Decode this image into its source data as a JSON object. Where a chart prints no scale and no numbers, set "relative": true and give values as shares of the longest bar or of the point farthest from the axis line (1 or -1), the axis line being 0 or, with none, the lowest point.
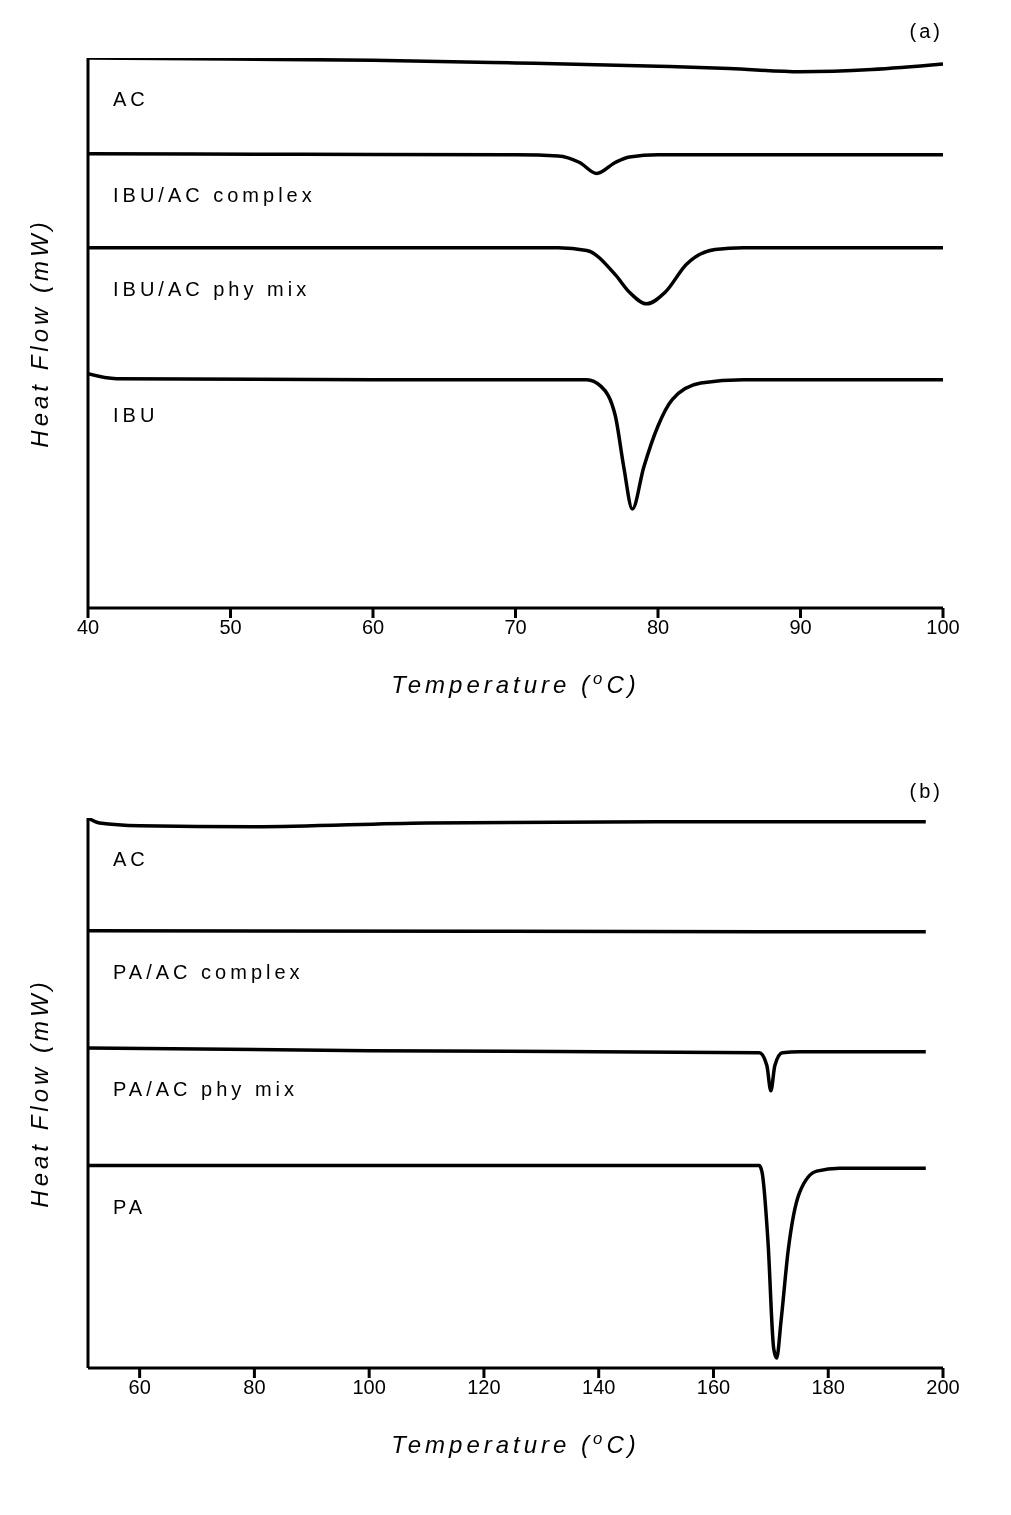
{
  "chart_data": [
    {
      "type": "line",
      "title": "(a)",
      "xlabel": "Temperature ($^{o}$C)",
      "ylabel": "Heat Flow (mW)",
      "relative": true,
      "xlim": [
        40,
        100
      ],
      "xticks": [
        40,
        50,
        60,
        70,
        80,
        90,
        100
      ],
      "series": [
        {
          "name": "AC",
          "color": "#000000",
          "x": [
            40,
            50,
            60,
            70,
            80,
            85,
            90,
            95,
            100
          ],
          "values": [
            1.0,
            0.998,
            0.996,
            0.991,
            0.985,
            0.981,
            0.975,
            0.979,
            0.989
          ]
        },
        {
          "name": "IBU/AC complex",
          "color": "#000000",
          "x": [
            40,
            55,
            70,
            73,
            74.5,
            75.7,
            77,
            78,
            80,
            100
          ],
          "values": [
            0.826,
            0.825,
            0.824,
            0.822,
            0.81,
            0.79,
            0.81,
            0.82,
            0.824,
            0.824
          ]
        },
        {
          "name": "IBU/AC phy mix",
          "color": "#000000",
          "x": [
            40,
            60,
            73,
            75,
            77,
            78,
            79.2,
            80.5,
            82,
            84,
            86,
            100
          ],
          "values": [
            0.655,
            0.655,
            0.655,
            0.65,
            0.606,
            0.574,
            0.553,
            0.574,
            0.625,
            0.652,
            0.655,
            0.655
          ]
        },
        {
          "name": "IBU",
          "color": "#000000",
          "x": [
            40,
            42,
            60,
            75,
            76,
            77,
            77.6,
            78.2,
            79,
            80,
            81,
            83,
            86,
            100
          ],
          "values": [
            0.426,
            0.417,
            0.415,
            0.415,
            0.403,
            0.35,
            0.256,
            0.18,
            0.256,
            0.331,
            0.379,
            0.409,
            0.415,
            0.415
          ]
        }
      ]
    },
    {
      "type": "line",
      "title": "(b)",
      "xlabel": "Temperature ($^{o}$C)",
      "ylabel": "Heat Flow (mW)",
      "relative": true,
      "xlim": [
        51,
        200
      ],
      "xticks": [
        60,
        80,
        100,
        120,
        140,
        160,
        180,
        200
      ],
      "series": [
        {
          "name": "AC",
          "color": "#000000",
          "x": [
            51,
            53,
            60,
            80,
            110,
            150,
            197
          ],
          "values": [
            1.0,
            0.991,
            0.986,
            0.984,
            0.991,
            0.993,
            0.993
          ]
        },
        {
          "name": "PA/AC complex",
          "color": "#000000",
          "x": [
            51,
            120,
            197
          ],
          "values": [
            0.795,
            0.794,
            0.793
          ]
        },
        {
          "name": "PA/AC phy mix",
          "color": "#000000",
          "x": [
            51,
            100,
            168,
            169.3,
            170,
            170.7,
            172,
            175,
            197
          ],
          "values": [
            0.582,
            0.577,
            0.573,
            0.55,
            0.504,
            0.55,
            0.573,
            0.575,
            0.575
          ]
        },
        {
          "name": "PA",
          "color": "#000000",
          "x": [
            51,
            120,
            168,
            168.5,
            169.5,
            170.5,
            171,
            171.8,
            173,
            175,
            178,
            182,
            197
          ],
          "values": [
            0.368,
            0.368,
            0.368,
            0.354,
            0.23,
            0.035,
            0.018,
            0.088,
            0.212,
            0.319,
            0.358,
            0.363,
            0.363
          ]
        }
      ]
    }
  ]
}
